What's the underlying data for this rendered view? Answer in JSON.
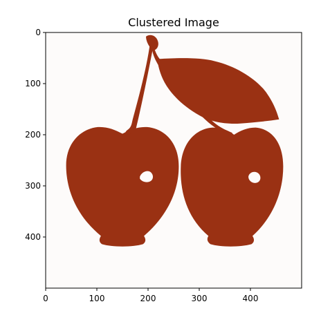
{
  "chart_data": {
    "type": "image",
    "title": "Clustered Image",
    "xlabel": "",
    "ylabel": "",
    "xlim": [
      0,
      500
    ],
    "ylim": [
      500,
      0
    ],
    "x_ticks": [
      0,
      100,
      200,
      300,
      400
    ],
    "y_ticks": [
      0,
      100,
      200,
      300,
      400
    ],
    "x_tick_labels": [
      "0",
      "100",
      "200",
      "300",
      "400"
    ],
    "y_tick_labels": [
      "0",
      "100",
      "200",
      "300",
      "400"
    ],
    "grid": false,
    "legend": "none",
    "clusters": [
      {
        "label": "background",
        "color": "#fdfbfa"
      },
      {
        "label": "foreground",
        "color": "#9a3113"
      }
    ]
  }
}
